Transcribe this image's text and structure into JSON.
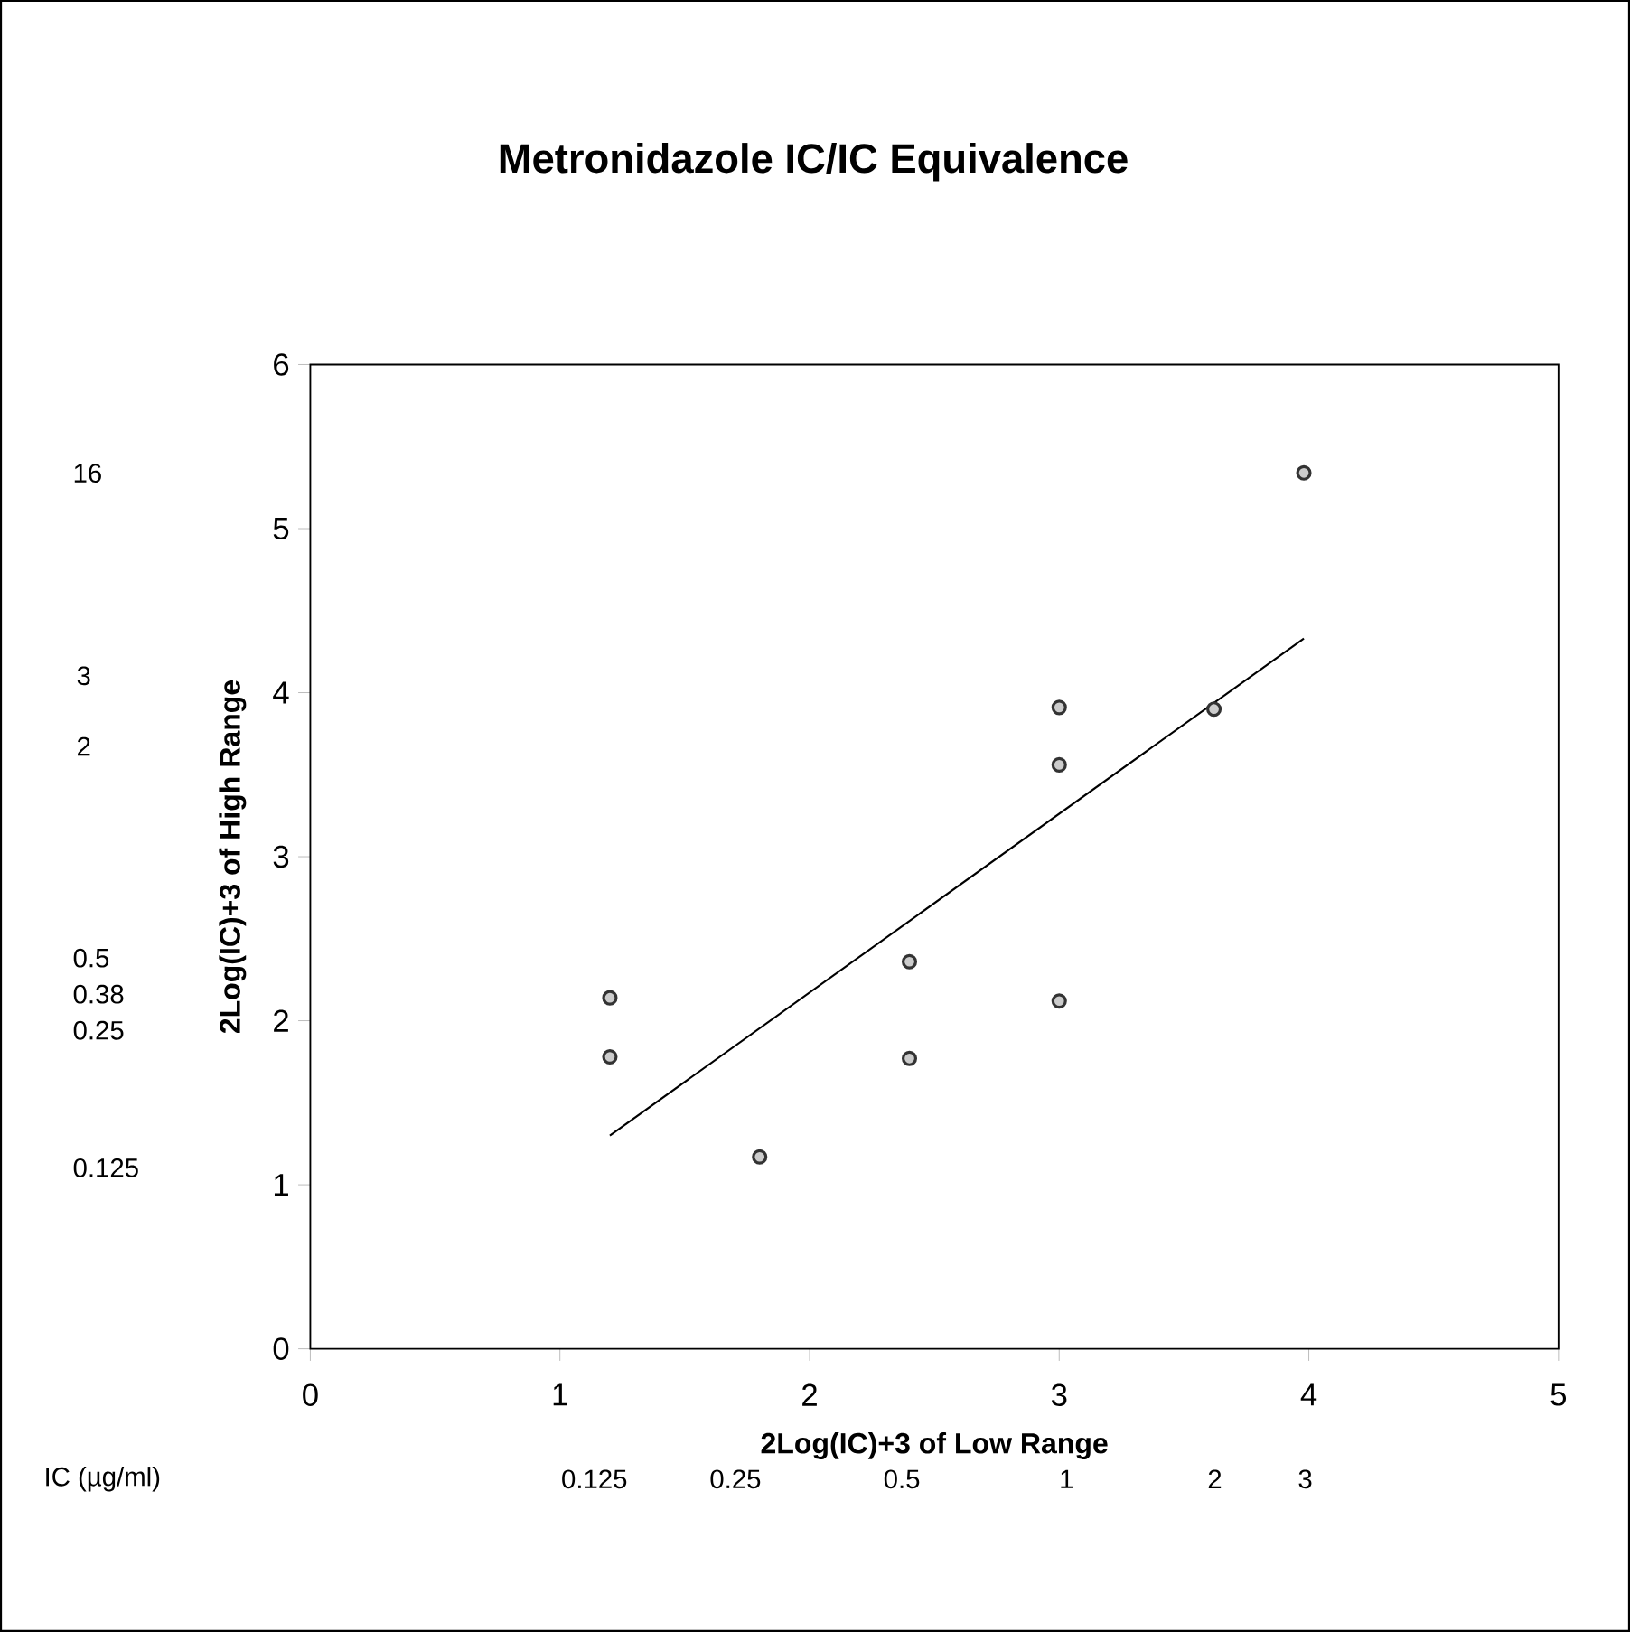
{
  "chart_data": {
    "type": "scatter",
    "title": "Metronidazole IC/IC Equivalence",
    "xlabel": "2Log(IC)+3 of Low Range",
    "ylabel": "2Log(IC)+3 of High Range",
    "xlim": [
      0,
      5
    ],
    "ylim": [
      0,
      6
    ],
    "xticks": [
      0,
      1,
      2,
      3,
      4,
      5
    ],
    "yticks": [
      0,
      1,
      2,
      3,
      4,
      5,
      6
    ],
    "marker": "circle",
    "annotations": [
      "IC (µg/ml)",
      "0.125",
      "0.25",
      "0.5",
      "1",
      "2",
      "3",
      "16",
      "3",
      "2",
      "0.5",
      "0.38",
      "0.25",
      "0.125"
    ],
    "series": [
      {
        "type": "scatter",
        "color": "#333333",
        "x": [
          1.2,
          1.2,
          1.8,
          2.4,
          2.4,
          3.0,
          3.0,
          3.0,
          3.62,
          3.98
        ],
        "values": [
          2.14,
          1.78,
          1.17,
          2.36,
          1.77,
          3.91,
          3.56,
          2.12,
          3.9,
          5.34
        ]
      },
      {
        "type": "line",
        "color": "#000000",
        "marker": "none",
        "x": [
          1.2,
          3.98
        ],
        "values": [
          1.3,
          4.33
        ]
      }
    ]
  }
}
